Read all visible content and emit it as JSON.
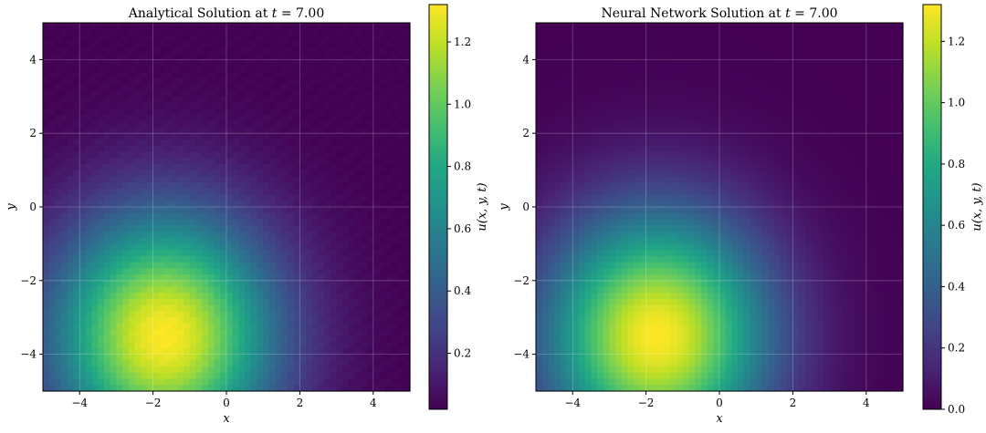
{
  "chart_data": [
    {
      "type": "heatmap",
      "title": "Analytical Solution at t = 7.00",
      "title_prefix": "Analytical Solution at ",
      "title_var": "t",
      "title_suffix": " = 7.00",
      "xlabel": "x",
      "ylabel": "y",
      "xlim": [
        -5,
        5
      ],
      "ylim": [
        -5,
        5
      ],
      "xticks": [
        -4,
        -2,
        0,
        2,
        4
      ],
      "yticks": [
        -4,
        -2,
        0,
        2,
        4
      ],
      "xtick_labels": [
        "−4",
        "−2",
        "0",
        "2",
        "4"
      ],
      "ytick_labels": [
        "−4",
        "−2",
        "0",
        "2",
        "4"
      ],
      "grid": true,
      "colormap": "viridis",
      "value_range": [
        0.02,
        1.32
      ],
      "peak": {
        "x": -1.7,
        "y": -3.5,
        "value": 1.32
      },
      "colorbar": {
        "label": "u(x, y, t)",
        "ticks": [
          0.2,
          0.4,
          0.6,
          0.8,
          1.0,
          1.2
        ],
        "tick_labels": [
          "0.2",
          "0.4",
          "0.6",
          "0.8",
          "1.0",
          "1.2"
        ]
      }
    },
    {
      "type": "heatmap",
      "title": "Neural Network Solution at t = 7.00",
      "title_prefix": "Neural Network Solution at ",
      "title_var": "t",
      "title_suffix": " = 7.00",
      "xlabel": "x",
      "ylabel": "y",
      "xlim": [
        -5,
        5
      ],
      "ylim": [
        -5,
        5
      ],
      "xticks": [
        -4,
        -2,
        0,
        2,
        4
      ],
      "yticks": [
        -4,
        -2,
        0,
        2,
        4
      ],
      "xtick_labels": [
        "−4",
        "−2",
        "0",
        "2",
        "4"
      ],
      "ytick_labels": [
        "−4",
        "−2",
        "0",
        "2",
        "4"
      ],
      "grid": true,
      "colormap": "viridis",
      "value_range": [
        0.0,
        1.32
      ],
      "peak": {
        "x": -1.7,
        "y": -3.5,
        "value": 1.32
      },
      "colorbar": {
        "label": "u(x, y, t)",
        "ticks": [
          0.0,
          0.2,
          0.4,
          0.6,
          0.8,
          1.0,
          1.2
        ],
        "tick_labels": [
          "0.0",
          "0.2",
          "0.4",
          "0.6",
          "0.8",
          "1.0",
          "1.2"
        ]
      }
    }
  ]
}
